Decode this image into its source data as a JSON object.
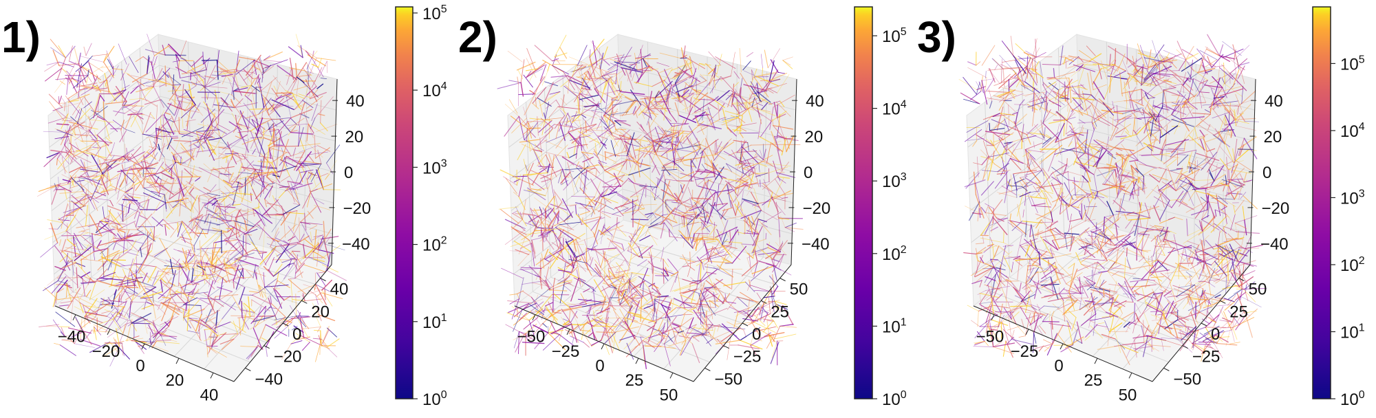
{
  "chart_data": [
    {
      "type": "network-3d",
      "panel_label": "1)",
      "x_ticks": [
        "−40",
        "−20",
        "0",
        "20",
        "40"
      ],
      "y_ticks": [
        "−40",
        "−20",
        "0",
        "20",
        "40"
      ],
      "z_ticks": [
        "40",
        "20",
        "0",
        "−20",
        "−40"
      ],
      "axis_range": [
        -50,
        50
      ],
      "grid": true,
      "colorbar": {
        "scale": "log",
        "min": 1,
        "max": 120000,
        "colormap": "plasma",
        "ticks": [
          {
            "base": "10",
            "exp": "0",
            "value": 1
          },
          {
            "base": "10",
            "exp": "1",
            "value": 10
          },
          {
            "base": "10",
            "exp": "2",
            "value": 100
          },
          {
            "base": "10",
            "exp": "3",
            "value": 1000
          },
          {
            "base": "10",
            "exp": "4",
            "value": 10000
          },
          {
            "base": "10",
            "exp": "5",
            "value": 100000
          }
        ]
      }
    },
    {
      "type": "network-3d",
      "panel_label": "2)",
      "x_ticks": [
        "−50",
        "−25",
        "0",
        "25",
        "50"
      ],
      "y_ticks": [
        "−50",
        "−25",
        "0",
        "25",
        "50"
      ],
      "z_ticks": [
        "40",
        "20",
        "0",
        "−20",
        "−40"
      ],
      "axis_range": [
        -60,
        60
      ],
      "grid": true,
      "colorbar": {
        "scale": "log",
        "min": 1,
        "max": 250000,
        "colormap": "plasma",
        "ticks": [
          {
            "base": "10",
            "exp": "0",
            "value": 1
          },
          {
            "base": "10",
            "exp": "1",
            "value": 10
          },
          {
            "base": "10",
            "exp": "2",
            "value": 100
          },
          {
            "base": "10",
            "exp": "3",
            "value": 1000
          },
          {
            "base": "10",
            "exp": "4",
            "value": 10000
          },
          {
            "base": "10",
            "exp": "5",
            "value": 100000
          }
        ]
      }
    },
    {
      "type": "network-3d",
      "panel_label": "3)",
      "x_ticks": [
        "−50",
        "−25",
        "0",
        "25",
        "50"
      ],
      "y_ticks": [
        "−50",
        "−25",
        "0",
        "25",
        "50"
      ],
      "z_ticks": [
        "40",
        "20",
        "0",
        "−20",
        "−40"
      ],
      "axis_range": [
        -60,
        60
      ],
      "grid": true,
      "colorbar": {
        "scale": "log",
        "min": 1,
        "max": 700000,
        "colormap": "plasma",
        "ticks": [
          {
            "base": "10",
            "exp": "0",
            "value": 1
          },
          {
            "base": "10",
            "exp": "1",
            "value": 10
          },
          {
            "base": "10",
            "exp": "2",
            "value": 100
          },
          {
            "base": "10",
            "exp": "3",
            "value": 1000
          },
          {
            "base": "10",
            "exp": "4",
            "value": 10000
          },
          {
            "base": "10",
            "exp": "5",
            "value": 100000
          }
        ]
      }
    }
  ]
}
